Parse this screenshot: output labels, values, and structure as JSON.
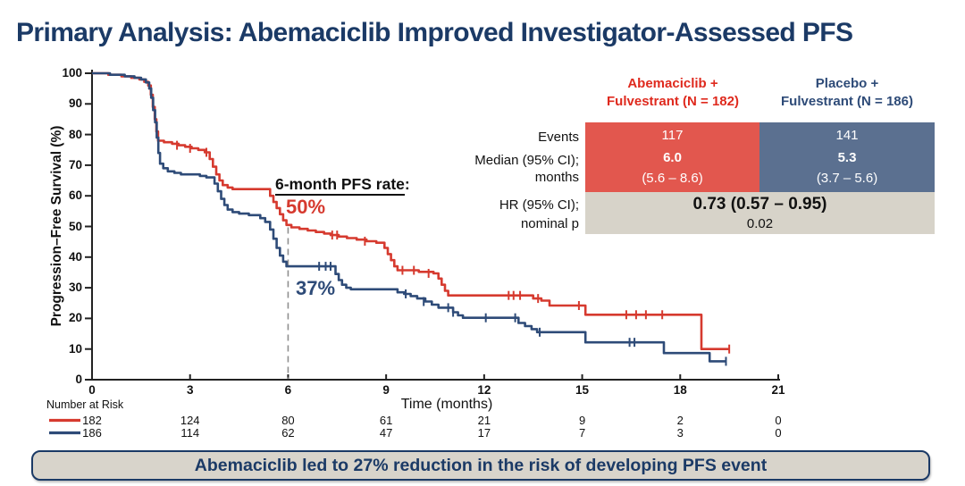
{
  "title": "Primary Analysis: Abemaciclib Improved Investigator-Assessed PFS",
  "colors": {
    "navy": "#1b3a66",
    "red_curve": "#d63a2f",
    "blue_curve": "#2e4b78",
    "red_cell": "#e2574e",
    "blue_cell": "#5b7090",
    "gray_cell": "#d7d3c9",
    "banner_bg": "#d8d4cb",
    "dashed": "#8f8f8f",
    "axis": "#222222"
  },
  "chart_data": {
    "type": "line",
    "subtype": "kaplan-meier-step",
    "title": "",
    "xlabel": "Time (months)",
    "ylabel": "Progression–Free Survival (%)",
    "xlim": [
      0,
      21
    ],
    "ylim": [
      0,
      100
    ],
    "x_ticks": [
      0,
      3,
      6,
      9,
      12,
      15,
      18,
      21
    ],
    "y_ticks": [
      0,
      10,
      20,
      30,
      40,
      50,
      60,
      70,
      80,
      90,
      100
    ],
    "grid": false,
    "annotation": {
      "label": "6-month PFS rate",
      "colon": ":",
      "red_value": "50%",
      "blue_value": "37%",
      "dashed_x": 6
    },
    "series": [
      {
        "name": "Abemaciclib + Fulvestrant",
        "color": "#d63a2f",
        "six_month_pfs_rate_pct": 50,
        "points": [
          [
            0,
            100
          ],
          [
            0.5,
            99.5
          ],
          [
            0.9,
            99
          ],
          [
            1.2,
            98.5
          ],
          [
            1.45,
            98
          ],
          [
            1.6,
            97.2
          ],
          [
            1.72,
            96
          ],
          [
            1.8,
            93
          ],
          [
            1.86,
            89
          ],
          [
            1.92,
            85
          ],
          [
            1.97,
            81
          ],
          [
            2.02,
            78
          ],
          [
            2.2,
            77.5
          ],
          [
            2.45,
            77
          ],
          [
            2.65,
            76.5
          ],
          [
            2.85,
            76
          ],
          [
            3.05,
            75.5
          ],
          [
            3.25,
            75
          ],
          [
            3.45,
            74.2
          ],
          [
            3.6,
            72
          ],
          [
            3.7,
            69.5
          ],
          [
            3.8,
            67
          ],
          [
            3.9,
            65
          ],
          [
            4.0,
            63.5
          ],
          [
            4.15,
            62.7
          ],
          [
            4.3,
            62.2
          ],
          [
            5.45,
            60
          ],
          [
            5.55,
            58
          ],
          [
            5.65,
            56
          ],
          [
            5.75,
            54
          ],
          [
            5.85,
            52
          ],
          [
            5.95,
            50.5
          ],
          [
            6.1,
            49.7
          ],
          [
            6.35,
            49.2
          ],
          [
            6.6,
            48.7
          ],
          [
            6.85,
            48.2
          ],
          [
            7.1,
            47.7
          ],
          [
            7.3,
            47.2
          ],
          [
            7.55,
            46.7
          ],
          [
            7.8,
            46.2
          ],
          [
            8.1,
            45.7
          ],
          [
            8.4,
            45.2
          ],
          [
            8.7,
            44.7
          ],
          [
            8.95,
            43
          ],
          [
            9.05,
            41
          ],
          [
            9.15,
            39
          ],
          [
            9.25,
            37
          ],
          [
            9.35,
            35.7
          ],
          [
            10.0,
            35.2
          ],
          [
            10.45,
            34.7
          ],
          [
            10.6,
            33
          ],
          [
            10.7,
            31
          ],
          [
            10.8,
            29
          ],
          [
            10.9,
            27.5
          ],
          [
            13.5,
            26.5
          ],
          [
            13.75,
            25.8
          ],
          [
            14.0,
            24.2
          ],
          [
            15.1,
            21.2
          ],
          [
            18.65,
            10
          ],
          [
            19.5,
            10
          ]
        ],
        "censor_marks": [
          [
            2.6,
            76.5
          ],
          [
            3.0,
            75.5
          ],
          [
            3.5,
            74.2
          ],
          [
            7.35,
            47.2
          ],
          [
            7.5,
            47.2
          ],
          [
            8.35,
            45.2
          ],
          [
            9.5,
            35.7
          ],
          [
            9.85,
            35.7
          ],
          [
            10.3,
            34.7
          ],
          [
            12.75,
            27.5
          ],
          [
            12.9,
            27.5
          ],
          [
            13.1,
            27.5
          ],
          [
            13.65,
            26.5
          ],
          [
            14.9,
            24.2
          ],
          [
            16.35,
            21.2
          ],
          [
            16.65,
            21.2
          ],
          [
            16.95,
            21.2
          ],
          [
            17.45,
            21.2
          ],
          [
            19.5,
            10
          ]
        ]
      },
      {
        "name": "Placebo + Fulvestrant",
        "color": "#2e4b78",
        "six_month_pfs_rate_pct": 37,
        "points": [
          [
            0,
            100
          ],
          [
            0.55,
            99.5
          ],
          [
            1.0,
            99
          ],
          [
            1.3,
            98.5
          ],
          [
            1.5,
            98
          ],
          [
            1.65,
            97
          ],
          [
            1.75,
            95
          ],
          [
            1.81,
            92
          ],
          [
            1.87,
            88
          ],
          [
            1.93,
            84
          ],
          [
            1.98,
            79
          ],
          [
            2.03,
            74
          ],
          [
            2.08,
            70.5
          ],
          [
            2.18,
            69
          ],
          [
            2.32,
            68
          ],
          [
            2.52,
            67.5
          ],
          [
            2.72,
            67
          ],
          [
            3.3,
            66.5
          ],
          [
            3.5,
            66
          ],
          [
            3.75,
            64
          ],
          [
            3.85,
            61.5
          ],
          [
            3.95,
            59
          ],
          [
            4.05,
            57
          ],
          [
            4.15,
            55.5
          ],
          [
            4.3,
            54.7
          ],
          [
            4.5,
            54.2
          ],
          [
            4.8,
            53.7
          ],
          [
            5.15,
            52.7
          ],
          [
            5.3,
            51.5
          ],
          [
            5.45,
            49
          ],
          [
            5.55,
            46
          ],
          [
            5.65,
            43
          ],
          [
            5.75,
            40.5
          ],
          [
            5.85,
            38.5
          ],
          [
            5.95,
            37
          ],
          [
            7.45,
            34.5
          ],
          [
            7.55,
            32.5
          ],
          [
            7.65,
            31
          ],
          [
            7.78,
            30
          ],
          [
            7.92,
            29.5
          ],
          [
            9.35,
            28.5
          ],
          [
            9.55,
            28
          ],
          [
            9.75,
            27.3
          ],
          [
            9.95,
            26.5
          ],
          [
            10.2,
            25.5
          ],
          [
            10.4,
            24.5
          ],
          [
            10.6,
            23.5
          ],
          [
            11.05,
            22
          ],
          [
            11.2,
            21
          ],
          [
            11.35,
            20.2
          ],
          [
            13.05,
            18.5
          ],
          [
            13.25,
            17.5
          ],
          [
            13.45,
            16.5
          ],
          [
            13.62,
            15.5
          ],
          [
            15.1,
            12.2
          ],
          [
            17.5,
            8.7
          ],
          [
            18.9,
            6
          ],
          [
            19.4,
            6
          ]
        ],
        "censor_marks": [
          [
            6.95,
            37
          ],
          [
            7.15,
            37
          ],
          [
            7.3,
            37
          ],
          [
            9.6,
            28
          ],
          [
            10.15,
            25.5
          ],
          [
            10.9,
            23.5
          ],
          [
            11.05,
            22
          ],
          [
            12.05,
            20.2
          ],
          [
            12.95,
            20.2
          ],
          [
            13.7,
            15.5
          ],
          [
            16.45,
            12.2
          ],
          [
            16.6,
            12.2
          ],
          [
            19.4,
            6
          ]
        ]
      }
    ]
  },
  "summary_table": {
    "col_headers": [
      {
        "line1": "Abemaciclib +",
        "line2": "Fulvestrant (N = 182)"
      },
      {
        "line1": "Placebo +",
        "line2": "Fulvestrant (N = 186)"
      }
    ],
    "row_labels": [
      "Events",
      "Median (95% CI);",
      "months",
      "HR (95% CI);",
      "nominal p"
    ],
    "abemaciclib": {
      "events": "117",
      "median": "6.0",
      "ci": "(5.6 – 8.6)"
    },
    "placebo": {
      "events": "141",
      "median": "5.3",
      "ci": "(3.7 – 5.6)"
    },
    "hr": "0.73 (0.57 – 0.95)",
    "nominal_p": "0.02"
  },
  "risk_table": {
    "label": "Number at Risk",
    "months": [
      0,
      3,
      6,
      9,
      12,
      15,
      18,
      21
    ],
    "rows": [
      {
        "name": "abemaciclib",
        "values": [
          "182",
          "124",
          "80",
          "61",
          "21",
          "9",
          "2",
          "0"
        ]
      },
      {
        "name": "placebo",
        "values": [
          "186",
          "114",
          "62",
          "47",
          "17",
          "7",
          "3",
          "0"
        ]
      }
    ]
  },
  "banner": {
    "text": "Abemaciclib led to 27% reduction in the risk of developing PFS event"
  }
}
